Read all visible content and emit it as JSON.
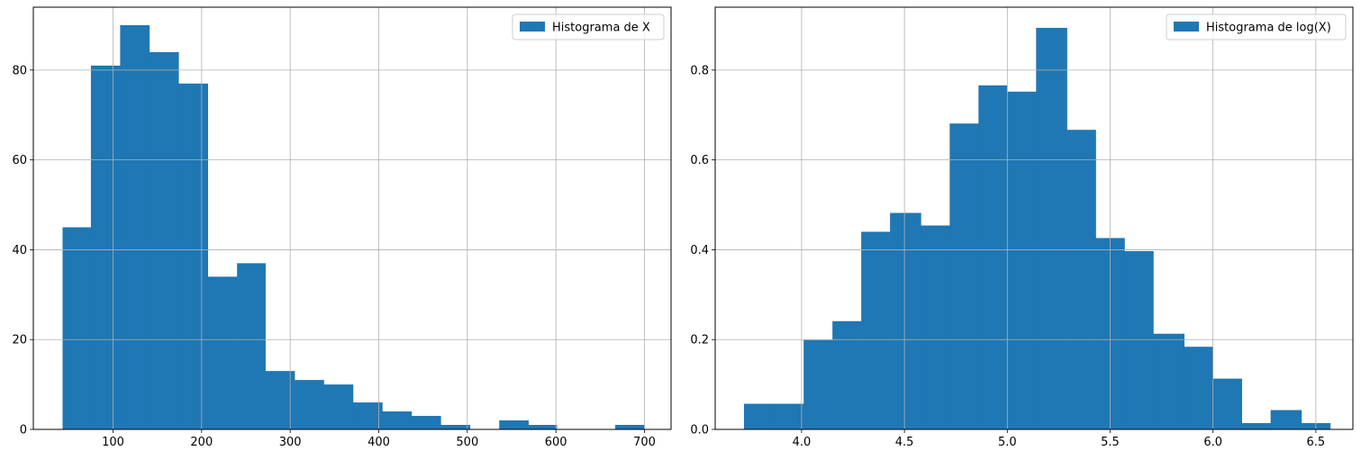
{
  "chart_data": [
    {
      "type": "bar",
      "legend": {
        "label": "Histograma de X",
        "placement": "top-right"
      },
      "color": "#1f77b4",
      "grid": true,
      "xlim": [
        10,
        730
      ],
      "ylim": [
        0,
        94
      ],
      "xticks": [
        100,
        200,
        300,
        400,
        500,
        600,
        700
      ],
      "yticks": [
        0,
        20,
        40,
        60,
        80
      ],
      "bins": [
        {
          "x0": 43,
          "x1": 75,
          "value": 45
        },
        {
          "x0": 75,
          "x1": 108,
          "value": 81
        },
        {
          "x0": 108,
          "x1": 141,
          "value": 90
        },
        {
          "x0": 141,
          "x1": 174,
          "value": 84
        },
        {
          "x0": 174,
          "x1": 207,
          "value": 77
        },
        {
          "x0": 207,
          "x1": 240,
          "value": 34
        },
        {
          "x0": 240,
          "x1": 272,
          "value": 37
        },
        {
          "x0": 272,
          "x1": 305,
          "value": 13
        },
        {
          "x0": 305,
          "x1": 338,
          "value": 11
        },
        {
          "x0": 338,
          "x1": 371,
          "value": 10
        },
        {
          "x0": 371,
          "x1": 404,
          "value": 6
        },
        {
          "x0": 404,
          "x1": 437,
          "value": 4
        },
        {
          "x0": 437,
          "x1": 470,
          "value": 3
        },
        {
          "x0": 470,
          "x1": 503,
          "value": 1
        },
        {
          "x0": 503,
          "x1": 536,
          "value": 0
        },
        {
          "x0": 536,
          "x1": 569,
          "value": 2
        },
        {
          "x0": 569,
          "x1": 601,
          "value": 1
        },
        {
          "x0": 601,
          "x1": 634,
          "value": 0
        },
        {
          "x0": 634,
          "x1": 667,
          "value": 0
        },
        {
          "x0": 667,
          "x1": 700,
          "value": 1
        }
      ]
    },
    {
      "type": "bar",
      "legend": {
        "label": "Histograma de log(X)",
        "placement": "top-right"
      },
      "color": "#1f77b4",
      "grid": true,
      "xlim": [
        3.58,
        6.68
      ],
      "ylim": [
        0,
        0.94
      ],
      "xticks": [
        4.0,
        4.5,
        5.0,
        5.5,
        6.0,
        6.5
      ],
      "yticks": [
        0.0,
        0.2,
        0.4,
        0.6,
        0.8
      ],
      "bins": [
        {
          "x0": 3.72,
          "x1": 3.86,
          "value": 0.057
        },
        {
          "x0": 3.86,
          "x1": 4.01,
          "value": 0.057
        },
        {
          "x0": 4.01,
          "x1": 4.15,
          "value": 0.199
        },
        {
          "x0": 4.15,
          "x1": 4.29,
          "value": 0.241
        },
        {
          "x0": 4.29,
          "x1": 4.43,
          "value": 0.44
        },
        {
          "x0": 4.43,
          "x1": 4.58,
          "value": 0.482
        },
        {
          "x0": 4.58,
          "x1": 4.72,
          "value": 0.454
        },
        {
          "x0": 4.72,
          "x1": 4.86,
          "value": 0.681
        },
        {
          "x0": 4.86,
          "x1": 5.0,
          "value": 0.766
        },
        {
          "x0": 5.0,
          "x1": 5.14,
          "value": 0.752
        },
        {
          "x0": 5.14,
          "x1": 5.29,
          "value": 0.894
        },
        {
          "x0": 5.29,
          "x1": 5.43,
          "value": 0.667
        },
        {
          "x0": 5.43,
          "x1": 5.57,
          "value": 0.426
        },
        {
          "x0": 5.57,
          "x1": 5.71,
          "value": 0.397
        },
        {
          "x0": 5.71,
          "x1": 5.86,
          "value": 0.213
        },
        {
          "x0": 5.86,
          "x1": 6.0,
          "value": 0.184
        },
        {
          "x0": 6.0,
          "x1": 6.14,
          "value": 0.113
        },
        {
          "x0": 6.14,
          "x1": 6.28,
          "value": 0.014
        },
        {
          "x0": 6.28,
          "x1": 6.43,
          "value": 0.043
        },
        {
          "x0": 6.43,
          "x1": 6.57,
          "value": 0.014
        }
      ]
    }
  ]
}
